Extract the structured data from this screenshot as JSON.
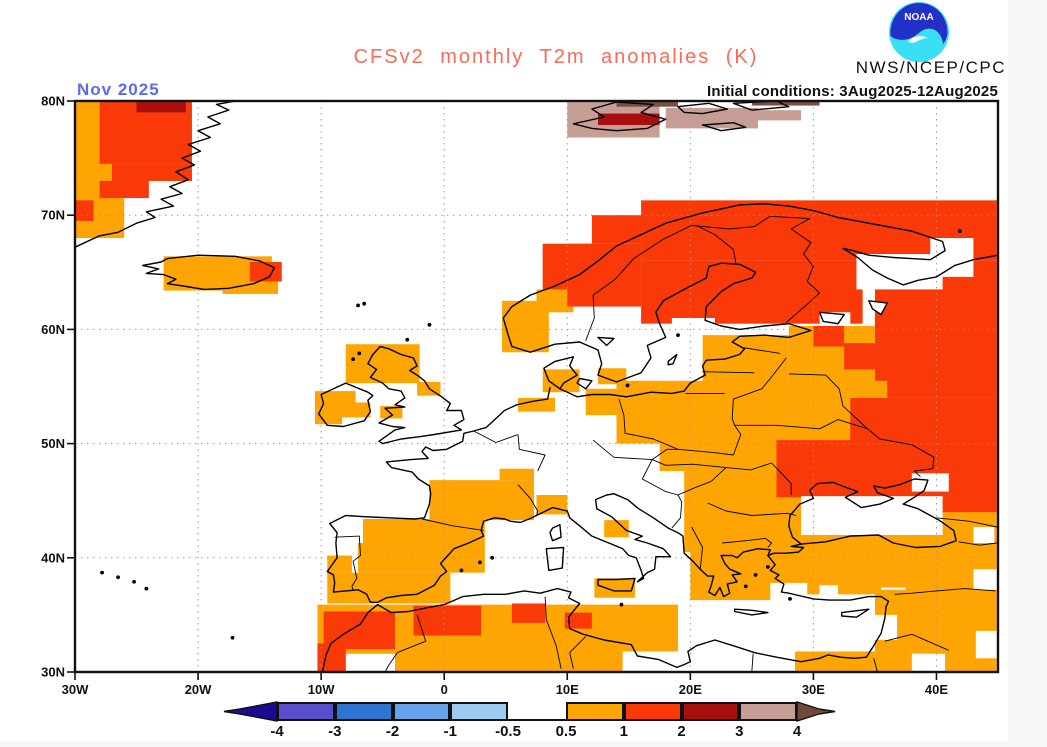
{
  "header": {
    "title": "CFSv2 monthly T2m anomalies (K)",
    "agency": "NWS/NCEP/CPC",
    "logo_text": "NOAA"
  },
  "map": {
    "month_label": "Nov 2025",
    "initial_conditions": "Initial conditions: 3Aug2025-12Aug2025"
  },
  "colors": {
    "title": "#fa6a58",
    "month_label": "#5c6be8",
    "text": "#111111",
    "grid": "#9a9a9a",
    "coast": "#000000",
    "logo_blue": "#2330c8",
    "logo_cyan": "#38dff5"
  },
  "chart_data": {
    "type": "heatmap",
    "title": "CFSv2 monthly T2m anomalies (K)",
    "units": "K",
    "lon_range": [
      -30,
      45
    ],
    "lat_range": [
      30,
      80
    ],
    "grid_lons": [
      -20,
      -10,
      0,
      10,
      20,
      30,
      40
    ],
    "grid_lats": [
      40,
      50,
      60,
      70
    ],
    "lat_ticks": [
      {
        "label": "80N",
        "value": 80
      },
      {
        "label": "70N",
        "value": 70
      },
      {
        "label": "60N",
        "value": 60
      },
      {
        "label": "50N",
        "value": 50
      },
      {
        "label": "40N",
        "value": 40
      },
      {
        "label": "30N",
        "value": 30
      }
    ],
    "lon_ticks": [
      {
        "label": "30W",
        "value": -30
      },
      {
        "label": "20W",
        "value": -20
      },
      {
        "label": "10W",
        "value": -10
      },
      {
        "label": "0",
        "value": 0
      },
      {
        "label": "10E",
        "value": 10
      },
      {
        "label": "20E",
        "value": 20
      },
      {
        "label": "30E",
        "value": 30
      },
      {
        "label": "40E",
        "value": 40
      }
    ],
    "palette": {
      "o": "#FFA503",
      "r": "#F93A08",
      "d": "#A80F0E",
      "t": "#C79E96",
      "b": "#7B5044",
      "w": "#FFFFFF"
    },
    "palette_meaning": {
      "o": "+0.5 to +1 K",
      "r": "+1 to +2 K",
      "d": "+2 to +3 K",
      "t": "+3 to +4 K",
      "b": "> +4 K",
      "w": "-0.5 to +0.5 K"
    },
    "cells_format": "[lon_west, lat_south, lon_east, lat_north, color_key]",
    "cells": [
      [
        -30,
        73,
        -20.5,
        80,
        "o"
      ],
      [
        -30,
        68,
        -26,
        73,
        "o"
      ],
      [
        -28,
        74.5,
        -20.5,
        80,
        "r"
      ],
      [
        -27,
        73,
        -20.5,
        74.5,
        "r"
      ],
      [
        -28,
        71.5,
        -24,
        73,
        "r"
      ],
      [
        -30,
        69.5,
        -28.5,
        71.3,
        "r"
      ],
      [
        -25,
        79,
        -21,
        80,
        "d"
      ],
      [
        -22.8,
        63.4,
        -14,
        66.4,
        "o"
      ],
      [
        -18,
        63.1,
        -13.5,
        64.3,
        "o"
      ],
      [
        -15.8,
        64.2,
        -13.2,
        65.9,
        "r"
      ],
      [
        10,
        76.8,
        17.5,
        79.9,
        "t"
      ],
      [
        18,
        77.6,
        25.5,
        79.4,
        "t"
      ],
      [
        25,
        78.3,
        29,
        79.2,
        "t"
      ],
      [
        14,
        79.5,
        19,
        80,
        "b"
      ],
      [
        25,
        79.6,
        30.5,
        80,
        "b"
      ],
      [
        12.5,
        77.9,
        17.5,
        78.9,
        "d"
      ],
      [
        4.7,
        58,
        8.5,
        62.5,
        "o"
      ],
      [
        7.5,
        61.5,
        10.5,
        63.5,
        "o"
      ],
      [
        10,
        62,
        16,
        67.5,
        "r"
      ],
      [
        8,
        63.5,
        12,
        67.5,
        "r"
      ],
      [
        12,
        67.5,
        20,
        70,
        "r"
      ],
      [
        16,
        66,
        44.9,
        71.3,
        "r"
      ],
      [
        16,
        60.5,
        34,
        66,
        "r"
      ],
      [
        35,
        54,
        44.9,
        66,
        "r"
      ],
      [
        33.5,
        63.5,
        40.5,
        66.6,
        "w"
      ],
      [
        39.5,
        64.6,
        43,
        68,
        "w"
      ],
      [
        18.5,
        59.8,
        22,
        61,
        "w"
      ],
      [
        24,
        59.3,
        28,
        60.4,
        "w"
      ],
      [
        21,
        53.5,
        28,
        59.5,
        "o"
      ],
      [
        28,
        54,
        35,
        60.3,
        "o"
      ],
      [
        30,
        58.5,
        32.5,
        60.3,
        "r"
      ],
      [
        32.5,
        56.5,
        35,
        58.8,
        "r"
      ],
      [
        30.5,
        60.3,
        33,
        61.5,
        "w"
      ],
      [
        14,
        50,
        24,
        55.5,
        "o"
      ],
      [
        11.5,
        52.5,
        14.5,
        54.8,
        "o"
      ],
      [
        6,
        52.8,
        9,
        54,
        "o"
      ],
      [
        8,
        54.5,
        11,
        56.5,
        "o"
      ],
      [
        12.5,
        55.2,
        14.8,
        56.6,
        "o"
      ],
      [
        -8,
        55.3,
        -2,
        58.7,
        "o"
      ],
      [
        -2.2,
        54.2,
        -0.3,
        55.4,
        "o"
      ],
      [
        -10.5,
        52.3,
        -6,
        54.6,
        "o"
      ],
      [
        -10.5,
        51.7,
        -8.3,
        52.4,
        "o"
      ],
      [
        -7.2,
        53.6,
        -5.8,
        55,
        "w"
      ],
      [
        -5.2,
        52.2,
        -3.4,
        53.3,
        "o"
      ],
      [
        -1.2,
        43.3,
        7.3,
        46.8,
        "o"
      ],
      [
        4.5,
        46.8,
        7.3,
        47.8,
        "o"
      ],
      [
        -9.5,
        36,
        0.5,
        38.7,
        "o"
      ],
      [
        -7,
        38.7,
        3.3,
        43.4,
        "o"
      ],
      [
        -9.5,
        38.7,
        -7.5,
        40.2,
        "o"
      ],
      [
        -9.5,
        41.3,
        -6.6,
        43.5,
        "w"
      ],
      [
        -10.3,
        30,
        19,
        35.9,
        "o"
      ],
      [
        -8,
        30,
        -4,
        31.6,
        "w"
      ],
      [
        14.5,
        30,
        19,
        31.8,
        "w"
      ],
      [
        -10.3,
        30,
        -8,
        32.5,
        "r"
      ],
      [
        -9.8,
        32,
        -4,
        35.3,
        "r"
      ],
      [
        -2.5,
        33.2,
        3,
        35.8,
        "r"
      ],
      [
        5.5,
        34.3,
        8.2,
        36,
        "r"
      ],
      [
        9.8,
        33.8,
        12,
        35.2,
        "r"
      ],
      [
        28.5,
        30,
        35,
        31.8,
        "o"
      ],
      [
        7.5,
        43.8,
        10,
        45.5,
        "o"
      ],
      [
        13,
        41.8,
        15,
        43.3,
        "o"
      ],
      [
        12.2,
        36.5,
        15.5,
        38.2,
        "o"
      ],
      [
        19.5,
        40.5,
        29.5,
        47.6,
        "o"
      ],
      [
        17.5,
        47.6,
        21,
        50,
        "o"
      ],
      [
        20,
        36.3,
        26.5,
        41,
        "o"
      ],
      [
        26,
        36.8,
        44.9,
        42,
        "o"
      ],
      [
        26.5,
        36.8,
        29.5,
        37.8,
        "w"
      ],
      [
        30.5,
        36.8,
        32,
        37.6,
        "w"
      ],
      [
        35.5,
        36.8,
        37.5,
        37.4,
        "w"
      ],
      [
        43,
        37,
        44.9,
        39,
        "w"
      ],
      [
        35,
        30,
        44.9,
        37.2,
        "o"
      ],
      [
        35,
        32.8,
        36.8,
        35,
        "w"
      ],
      [
        38,
        30,
        40.7,
        31.6,
        "w"
      ],
      [
        43.2,
        31.2,
        44.9,
        33.6,
        "w"
      ],
      [
        21,
        44,
        36,
        55.5,
        "o"
      ],
      [
        27,
        45.3,
        36.5,
        50.3,
        "r"
      ],
      [
        33,
        50.3,
        36.5,
        52,
        "r"
      ],
      [
        33,
        43.8,
        44.9,
        54,
        "r"
      ],
      [
        29,
        42,
        40.5,
        45.4,
        "w"
      ],
      [
        38,
        45.8,
        41,
        47.4,
        "w"
      ],
      [
        40.5,
        41,
        44.9,
        44,
        "o"
      ],
      [
        43,
        41.3,
        44.7,
        42.7,
        "w"
      ]
    ],
    "colorbar": {
      "labels": [
        "-4",
        "-3",
        "-2",
        "-1",
        "-0.5",
        "0.5",
        "1",
        "2",
        "3",
        "4"
      ],
      "cold_colors": [
        "#5A4ECD",
        "#2E74D0",
        "#67A3EA",
        "#9CCBF4"
      ],
      "warm_colors": [
        "#FFA503",
        "#F93A08",
        "#A80F0E",
        "#C79E96"
      ],
      "left_arrow_color": "#1A0B93",
      "right_arrow_color": "#6F4938"
    }
  }
}
